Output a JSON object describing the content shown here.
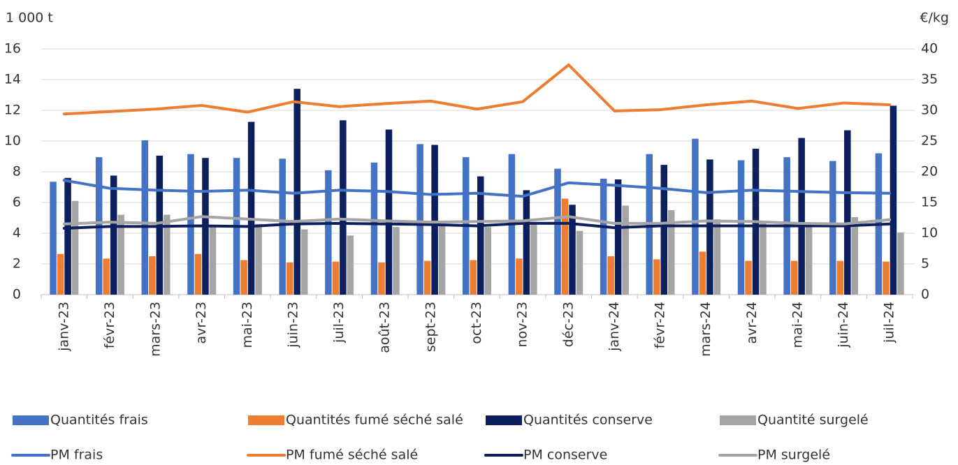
{
  "chart_data": {
    "type": "combo",
    "ylabel": "1 000 t",
    "y2label": "€/kg",
    "categories": [
      "janv-23",
      "févr-23",
      "mars-23",
      "avr-23",
      "mai-23",
      "juin-23",
      "juil-23",
      "août-23",
      "sept-23",
      "oct-23",
      "nov-23",
      "déc-23",
      "janv-24",
      "févr-24",
      "mars-24",
      "avr-24",
      "mai-24",
      "juin-24",
      "juil-24"
    ],
    "ylim": [
      0,
      16
    ],
    "yticks": [
      0,
      2,
      4,
      6,
      8,
      10,
      12,
      14,
      16
    ],
    "y2lim": [
      0,
      40
    ],
    "y2ticks": [
      0,
      5,
      10,
      15,
      20,
      25,
      30,
      35,
      40
    ],
    "grid": true,
    "series": [
      {
        "name": "Quantités frais",
        "type": "bar",
        "color": "#4472c4",
        "values": [
          7.35,
          8.95,
          10.05,
          9.15,
          8.9,
          8.85,
          8.1,
          8.6,
          9.8,
          8.95,
          9.15,
          8.2,
          7.55,
          9.15,
          10.15,
          8.75,
          8.95,
          8.7,
          9.2
        ]
      },
      {
        "name": "Quantités fumé séché salé",
        "type": "bar",
        "color": "#ed7d31",
        "values": [
          2.65,
          2.35,
          2.5,
          2.65,
          2.25,
          2.1,
          2.15,
          2.1,
          2.2,
          2.25,
          2.35,
          6.25,
          2.5,
          2.3,
          2.8,
          2.2,
          2.2,
          2.2,
          2.15
        ]
      },
      {
        "name": "Quantités conserve",
        "type": "bar",
        "color": "#0d1f5c",
        "values": [
          7.6,
          7.75,
          9.05,
          8.9,
          11.25,
          13.4,
          11.35,
          10.75,
          9.75,
          7.7,
          6.8,
          5.85,
          7.5,
          8.45,
          8.8,
          9.5,
          10.2,
          10.7,
          12.3
        ]
      },
      {
        "name": "Quantité surgelé",
        "type": "bar",
        "color": "#a5a5a5",
        "values": [
          6.1,
          5.2,
          5.2,
          4.4,
          4.6,
          4.25,
          3.85,
          4.4,
          4.5,
          4.4,
          4.6,
          4.15,
          5.8,
          5.5,
          4.9,
          4.7,
          4.7,
          5.05,
          4.05
        ]
      },
      {
        "name": "PM frais",
        "type": "line",
        "axis": "y2",
        "color": "#4472c4",
        "values": [
          18.6,
          17.3,
          17.0,
          16.8,
          17.0,
          16.5,
          17.0,
          16.8,
          16.3,
          16.5,
          16.0,
          18.2,
          17.8,
          17.3,
          16.6,
          17.0,
          16.8,
          16.6,
          16.5
        ]
      },
      {
        "name": "PM fumé séché salé",
        "type": "line",
        "axis": "y2",
        "color": "#ed7d31",
        "values": [
          29.4,
          29.8,
          30.2,
          30.8,
          29.7,
          31.4,
          30.6,
          31.1,
          31.5,
          30.2,
          31.4,
          37.4,
          29.9,
          30.1,
          30.9,
          31.5,
          30.3,
          31.2,
          30.9
        ]
      },
      {
        "name": "PM conserve",
        "type": "line",
        "axis": "y2",
        "color": "#0d1f5c",
        "values": [
          10.8,
          11.1,
          11.1,
          11.2,
          11.1,
          11.5,
          11.6,
          11.5,
          11.4,
          11.2,
          11.6,
          11.6,
          10.9,
          11.2,
          11.2,
          11.2,
          11.2,
          11.2,
          11.5
        ]
      },
      {
        "name": "PM surgelé",
        "type": "line",
        "axis": "y2",
        "color": "#a5a5a5",
        "values": [
          11.5,
          11.8,
          11.6,
          12.7,
          12.3,
          11.9,
          12.3,
          12.0,
          11.8,
          11.9,
          12.0,
          12.7,
          11.6,
          11.6,
          12.0,
          11.9,
          11.6,
          11.5,
          12.2
        ]
      }
    ]
  }
}
